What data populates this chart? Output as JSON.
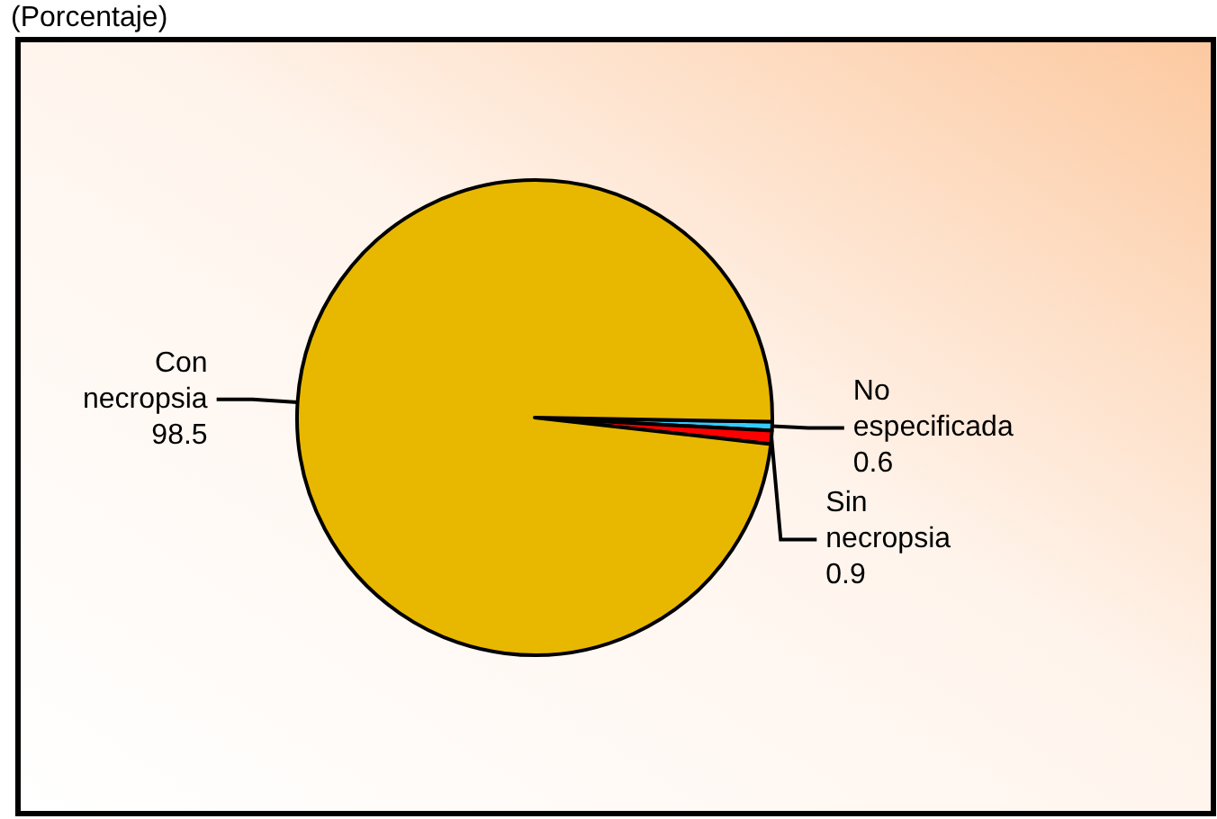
{
  "chart_data": {
    "type": "pie",
    "title": "(Porcentaje)",
    "categories": [
      "No especificada",
      "Sin necropsia",
      "Con necropsia"
    ],
    "values": [
      0.6,
      0.9,
      98.5
    ],
    "colors": [
      "#33ccff",
      "#ff0000",
      "#e8b800"
    ],
    "data_labels": true
  }
}
